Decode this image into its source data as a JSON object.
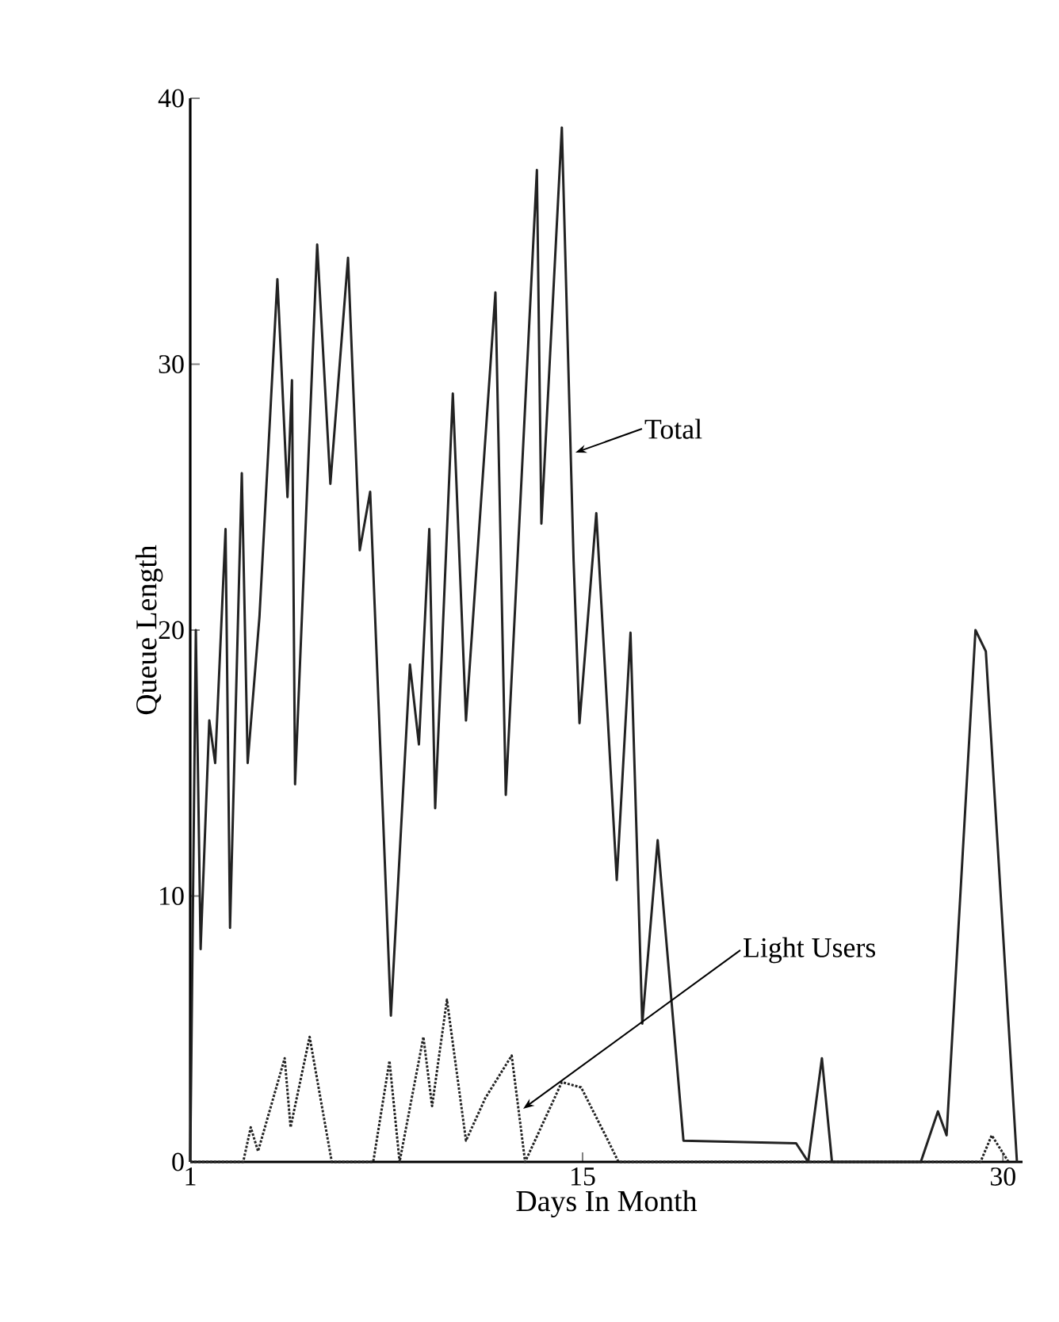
{
  "chart_data": {
    "type": "line",
    "xlabel": "Days In Month",
    "ylabel": "Queue Length",
    "xlim": [
      1,
      30.7
    ],
    "ylim": [
      0,
      40
    ],
    "xticks": [
      1,
      15,
      30
    ],
    "yticks": [
      0,
      10,
      20,
      30,
      40
    ],
    "grid": false,
    "marker": "none",
    "series": [
      {
        "name": "Total",
        "color": "#222222",
        "line_style": "solid",
        "x": [
          1.0,
          1.2,
          1.37,
          1.68,
          1.89,
          2.26,
          2.42,
          2.84,
          3.05,
          3.47,
          4.11,
          4.47,
          4.63,
          4.74,
          5.53,
          6.0,
          6.63,
          7.05,
          7.42,
          8.16,
          8.84,
          9.16,
          9.53,
          9.74,
          10.37,
          10.84,
          11.89,
          12.26,
          13.37,
          13.53,
          14.26,
          14.68,
          14.89,
          15.49,
          16.22,
          16.71,
          17.13,
          17.68,
          18.6,
          22.62,
          23.05,
          23.54,
          23.9,
          27.07,
          27.68,
          27.99,
          29.02,
          29.39,
          30.5
        ],
        "values": [
          0,
          20,
          8,
          16.6,
          15,
          23.8,
          8.8,
          25.9,
          15,
          20.5,
          33.2,
          25,
          29.4,
          14.2,
          34.5,
          25.5,
          34,
          23,
          25.2,
          5.5,
          18.7,
          15.7,
          23.8,
          13.3,
          28.9,
          16.6,
          32.7,
          13.8,
          37.3,
          24,
          38.9,
          22.6,
          16.5,
          24.4,
          10.6,
          19.9,
          5.2,
          12.1,
          0.8,
          0.7,
          0,
          3.9,
          0,
          0,
          1.9,
          1,
          20,
          19.2,
          0
        ]
      },
      {
        "name": "Light Users",
        "color": "#222222",
        "line_style": "dotted",
        "x": [
          1.0,
          2.89,
          3.16,
          3.42,
          4.37,
          4.58,
          5.26,
          6.05,
          7.53,
          8.11,
          8.47,
          9.32,
          9.63,
          10.16,
          10.84,
          11.53,
          12.47,
          12.95,
          14.26,
          14.95,
          15.91,
          16.28,
          29.2,
          29.6,
          30.2
        ],
        "values": [
          0,
          0,
          1.3,
          0.4,
          3.9,
          1.3,
          4.7,
          0,
          0,
          3.8,
          0,
          4.7,
          2.1,
          6.1,
          0.8,
          2.4,
          4,
          0,
          3,
          2.8,
          0.8,
          0,
          0,
          1,
          0
        ]
      }
    ]
  }
}
